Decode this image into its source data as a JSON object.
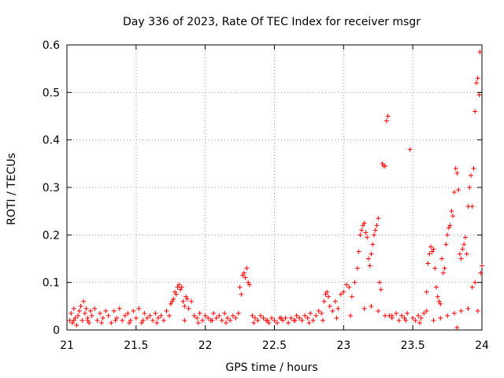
{
  "chart_data": {
    "type": "scatter",
    "title": "Day 336 of 2023, Rate Of TEC Index for receiver msgr",
    "xlabel": "GPS time / hours",
    "ylabel": "ROTI / TECUs",
    "xlim": [
      21,
      24
    ],
    "ylim": [
      0,
      0.6
    ],
    "x_ticks": [
      21,
      21.5,
      22,
      22.5,
      23,
      23.5,
      24
    ],
    "x_tick_labels": [
      "21",
      "21.5",
      "22",
      "22.5",
      "23",
      "23.5",
      "24"
    ],
    "y_ticks": [
      0,
      0.1,
      0.2,
      0.3,
      0.4,
      0.5,
      0.6
    ],
    "y_tick_labels": [
      "0",
      "0.1",
      "0.2",
      "0.3",
      "0.4",
      "0.5",
      "0.6"
    ],
    "grid": true,
    "marker": "+",
    "color": "#ff0000",
    "series": [
      {
        "name": "ROTI",
        "points": [
          [
            21.02,
            0.02
          ],
          [
            21.03,
            0.035
          ],
          [
            21.04,
            0.015
          ],
          [
            21.05,
            0.045
          ],
          [
            21.06,
            0.025
          ],
          [
            21.07,
            0.01
          ],
          [
            21.08,
            0.03
          ],
          [
            21.09,
            0.04
          ],
          [
            21.1,
            0.05
          ],
          [
            21.11,
            0.02
          ],
          [
            21.12,
            0.06
          ],
          [
            21.13,
            0.035
          ],
          [
            21.14,
            0.045
          ],
          [
            21.15,
            0.025
          ],
          [
            21.16,
            0.015
          ],
          [
            21.17,
            0.04
          ],
          [
            21.18,
            0.03
          ],
          [
            21.2,
            0.045
          ],
          [
            21.22,
            0.02
          ],
          [
            21.24,
            0.035
          ],
          [
            21.26,
            0.025
          ],
          [
            21.28,
            0.04
          ],
          [
            21.3,
            0.03
          ],
          [
            21.32,
            0.015
          ],
          [
            21.34,
            0.04
          ],
          [
            21.36,
            0.025
          ],
          [
            21.38,
            0.045
          ],
          [
            21.4,
            0.02
          ],
          [
            21.42,
            0.03
          ],
          [
            21.44,
            0.035
          ],
          [
            21.46,
            0.02
          ],
          [
            21.48,
            0.04
          ],
          [
            21.5,
            0.025
          ],
          [
            21.52,
            0.045
          ],
          [
            21.54,
            0.015
          ],
          [
            21.56,
            0.035
          ],
          [
            21.58,
            0.025
          ],
          [
            21.6,
            0.03
          ],
          [
            21.62,
            0.02
          ],
          [
            21.64,
            0.035
          ],
          [
            21.66,
            0.025
          ],
          [
            21.68,
            0.03
          ],
          [
            21.7,
            0.02
          ],
          [
            21.72,
            0.04
          ],
          [
            21.74,
            0.03
          ],
          [
            21.75,
            0.055
          ],
          [
            21.76,
            0.06
          ],
          [
            21.77,
            0.065
          ],
          [
            21.78,
            0.08
          ],
          [
            21.79,
            0.075
          ],
          [
            21.8,
            0.09
          ],
          [
            21.81,
            0.095
          ],
          [
            21.82,
            0.085
          ],
          [
            21.83,
            0.09
          ],
          [
            21.84,
            0.06
          ],
          [
            21.85,
            0.05
          ],
          [
            21.86,
            0.07
          ],
          [
            21.87,
            0.065
          ],
          [
            21.88,
            0.045
          ],
          [
            21.9,
            0.06
          ],
          [
            21.92,
            0.03
          ],
          [
            21.94,
            0.025
          ],
          [
            21.96,
            0.035
          ],
          [
            21.98,
            0.02
          ],
          [
            22.0,
            0.03
          ],
          [
            22.02,
            0.025
          ],
          [
            22.04,
            0.02
          ],
          [
            22.06,
            0.035
          ],
          [
            22.08,
            0.025
          ],
          [
            22.1,
            0.03
          ],
          [
            22.12,
            0.02
          ],
          [
            22.14,
            0.035
          ],
          [
            22.16,
            0.025
          ],
          [
            22.18,
            0.02
          ],
          [
            22.2,
            0.03
          ],
          [
            22.22,
            0.025
          ],
          [
            22.24,
            0.035
          ],
          [
            22.25,
            0.09
          ],
          [
            22.26,
            0.075
          ],
          [
            22.27,
            0.115
          ],
          [
            22.28,
            0.12
          ],
          [
            22.29,
            0.11
          ],
          [
            22.3,
            0.13
          ],
          [
            22.31,
            0.1
          ],
          [
            22.32,
            0.095
          ],
          [
            22.34,
            0.03
          ],
          [
            22.36,
            0.025
          ],
          [
            22.38,
            0.02
          ],
          [
            22.4,
            0.03
          ],
          [
            22.42,
            0.025
          ],
          [
            22.44,
            0.02
          ],
          [
            22.46,
            0.015
          ],
          [
            22.48,
            0.025
          ],
          [
            22.5,
            0.02
          ],
          [
            22.52,
            0.015
          ],
          [
            22.54,
            0.025
          ],
          [
            22.56,
            0.02
          ],
          [
            22.58,
            0.025
          ],
          [
            22.6,
            0.015
          ],
          [
            22.62,
            0.025
          ],
          [
            22.64,
            0.02
          ],
          [
            22.66,
            0.03
          ],
          [
            22.68,
            0.025
          ],
          [
            22.7,
            0.02
          ],
          [
            22.72,
            0.03
          ],
          [
            22.74,
            0.025
          ],
          [
            22.76,
            0.035
          ],
          [
            22.78,
            0.02
          ],
          [
            22.8,
            0.03
          ],
          [
            22.82,
            0.04
          ],
          [
            22.84,
            0.035
          ],
          [
            22.86,
            0.06
          ],
          [
            22.87,
            0.075
          ],
          [
            22.88,
            0.08
          ],
          [
            22.89,
            0.07
          ],
          [
            22.9,
            0.05
          ],
          [
            22.92,
            0.04
          ],
          [
            22.94,
            0.06
          ],
          [
            22.96,
            0.045
          ],
          [
            22.98,
            0.075
          ],
          [
            23.0,
            0.08
          ],
          [
            23.02,
            0.095
          ],
          [
            23.04,
            0.09
          ],
          [
            23.06,
            0.07
          ],
          [
            23.08,
            0.1
          ],
          [
            23.1,
            0.13
          ],
          [
            23.11,
            0.165
          ],
          [
            23.12,
            0.2
          ],
          [
            23.13,
            0.21
          ],
          [
            23.14,
            0.22
          ],
          [
            23.15,
            0.225
          ],
          [
            23.16,
            0.205
          ],
          [
            23.17,
            0.195
          ],
          [
            23.18,
            0.15
          ],
          [
            23.19,
            0.135
          ],
          [
            23.2,
            0.16
          ],
          [
            23.21,
            0.18
          ],
          [
            23.22,
            0.2
          ],
          [
            23.23,
            0.21
          ],
          [
            23.24,
            0.22
          ],
          [
            23.25,
            0.235
          ],
          [
            23.26,
            0.1
          ],
          [
            23.27,
            0.085
          ],
          [
            23.28,
            0.35
          ],
          [
            23.29,
            0.345
          ],
          [
            23.3,
            0.345
          ],
          [
            23.31,
            0.44
          ],
          [
            23.32,
            0.45
          ],
          [
            23.33,
            0.03
          ],
          [
            23.35,
            0.025
          ],
          [
            23.38,
            0.035
          ],
          [
            23.4,
            0.02
          ],
          [
            23.42,
            0.03
          ],
          [
            23.44,
            0.025
          ],
          [
            23.46,
            0.035
          ],
          [
            23.48,
            0.38
          ],
          [
            23.5,
            0.025
          ],
          [
            23.52,
            0.02
          ],
          [
            23.54,
            0.03
          ],
          [
            23.56,
            0.025
          ],
          [
            23.58,
            0.035
          ],
          [
            23.6,
            0.08
          ],
          [
            23.61,
            0.14
          ],
          [
            23.62,
            0.16
          ],
          [
            23.63,
            0.175
          ],
          [
            23.64,
            0.165
          ],
          [
            23.65,
            0.17
          ],
          [
            23.66,
            0.13
          ],
          [
            23.67,
            0.09
          ],
          [
            23.68,
            0.07
          ],
          [
            23.69,
            0.06
          ],
          [
            23.7,
            0.055
          ],
          [
            23.71,
            0.15
          ],
          [
            23.72,
            0.12
          ],
          [
            23.73,
            0.13
          ],
          [
            23.74,
            0.18
          ],
          [
            23.75,
            0.2
          ],
          [
            23.76,
            0.215
          ],
          [
            23.77,
            0.22
          ],
          [
            23.78,
            0.25
          ],
          [
            23.79,
            0.24
          ],
          [
            23.8,
            0.29
          ],
          [
            23.81,
            0.34
          ],
          [
            23.82,
            0.33
          ],
          [
            23.83,
            0.295
          ],
          [
            23.84,
            0.16
          ],
          [
            23.85,
            0.15
          ],
          [
            23.86,
            0.17
          ],
          [
            23.87,
            0.18
          ],
          [
            23.88,
            0.195
          ],
          [
            23.89,
            0.16
          ],
          [
            23.9,
            0.26
          ],
          [
            23.91,
            0.3
          ],
          [
            23.92,
            0.325
          ],
          [
            23.93,
            0.26
          ],
          [
            23.94,
            0.34
          ],
          [
            23.95,
            0.46
          ],
          [
            23.96,
            0.52
          ],
          [
            23.97,
            0.53
          ],
          [
            23.98,
            0.495
          ],
          [
            23.985,
            0.585
          ],
          [
            23.99,
            0.12
          ],
          [
            24.0,
            0.135
          ],
          [
            23.95,
            0.1
          ],
          [
            23.93,
            0.09
          ],
          [
            23.85,
            0.04
          ],
          [
            23.8,
            0.035
          ],
          [
            23.75,
            0.03
          ],
          [
            23.7,
            0.025
          ],
          [
            23.65,
            0.02
          ],
          [
            23.55,
            0.015
          ],
          [
            23.45,
            0.02
          ],
          [
            23.35,
            0.03
          ],
          [
            23.25,
            0.04
          ],
          [
            23.2,
            0.05
          ],
          [
            23.15,
            0.045
          ],
          [
            23.05,
            0.03
          ],
          [
            22.95,
            0.025
          ],
          [
            22.85,
            0.02
          ],
          [
            22.75,
            0.015
          ],
          [
            22.65,
            0.02
          ],
          [
            22.55,
            0.025
          ],
          [
            22.45,
            0.02
          ],
          [
            22.35,
            0.015
          ],
          [
            22.15,
            0.015
          ],
          [
            22.05,
            0.02
          ],
          [
            21.95,
            0.015
          ],
          [
            21.85,
            0.02
          ],
          [
            21.65,
            0.015
          ],
          [
            21.55,
            0.02
          ],
          [
            21.45,
            0.015
          ],
          [
            21.35,
            0.02
          ],
          [
            21.25,
            0.015
          ],
          [
            21.15,
            0.02
          ],
          [
            21.05,
            0.02
          ],
          [
            23.82,
            0.005
          ],
          [
            23.97,
            0.04
          ],
          [
            23.9,
            0.045
          ],
          [
            23.6,
            0.04
          ],
          [
            23.3,
            0.03
          ]
        ]
      }
    ]
  }
}
